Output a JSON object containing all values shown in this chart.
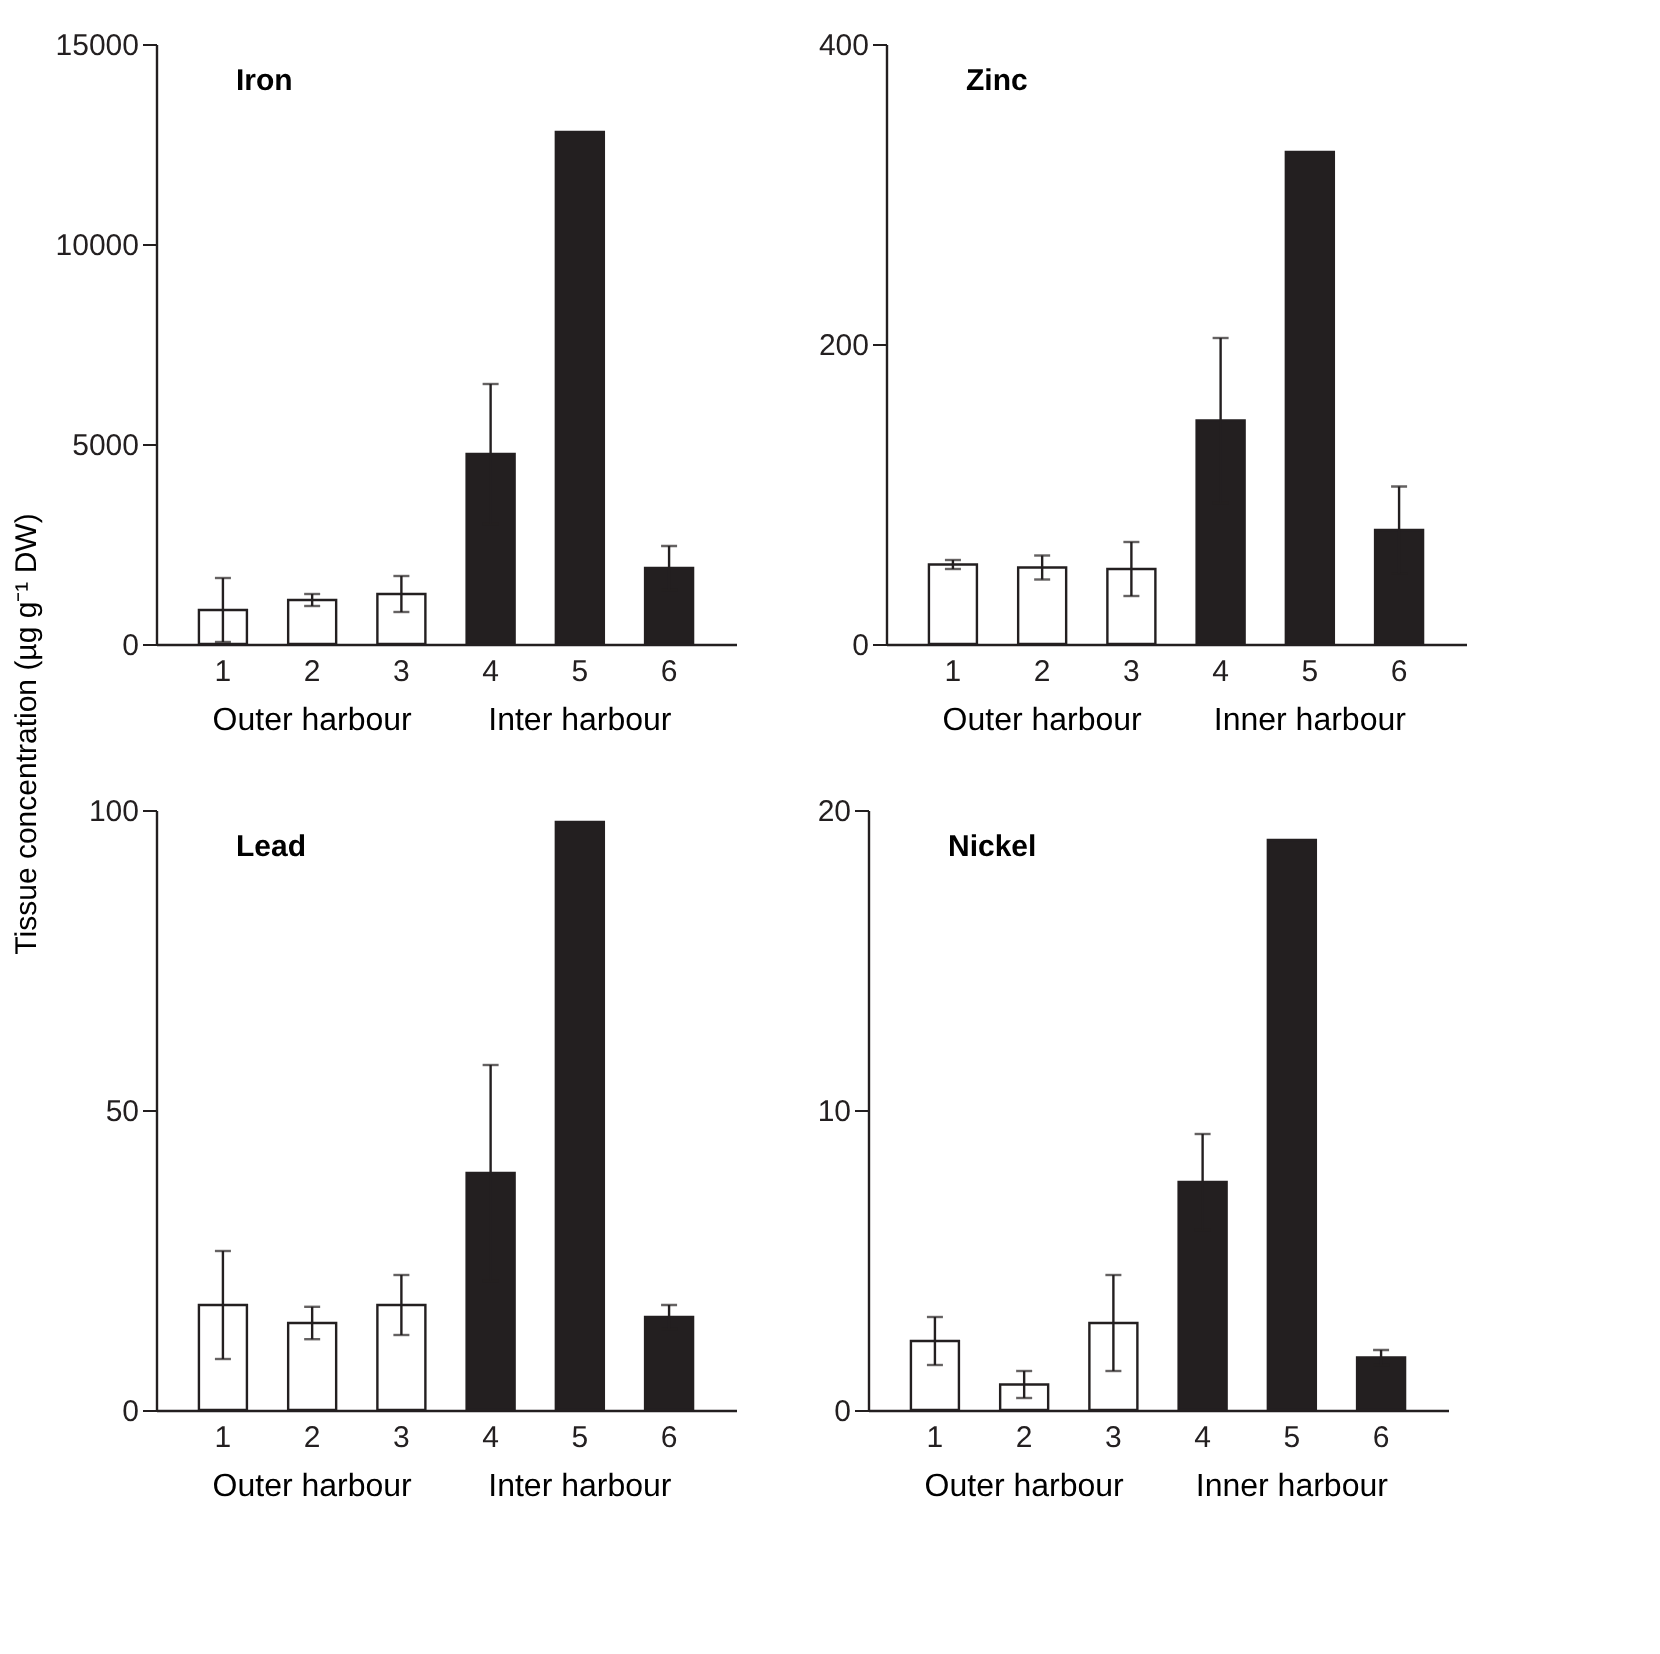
{
  "chart_data": [
    {
      "type": "bar",
      "title": "Iron",
      "ylabel": "Tissue concentration (µg g⁻¹ DW)",
      "categories": [
        "1",
        "2",
        "3",
        "4",
        "5",
        "6"
      ],
      "values": [
        850,
        1100,
        1250,
        4750,
        12800,
        1900
      ],
      "errors": [
        800,
        150,
        450,
        1750,
        null,
        550
      ],
      "colors": [
        "#ffffff",
        "#ffffff",
        "#ffffff",
        "#231f20",
        "#231f20",
        "#231f20"
      ],
      "ylim": [
        0,
        15000
      ],
      "yticks": [
        0,
        5000,
        10000,
        15000
      ],
      "annotations": [
        "Outer harbour",
        "Inter harbour"
      ],
      "grid": false
    },
    {
      "type": "bar",
      "title": "Zinc",
      "categories": [
        "1",
        "2",
        "3",
        "4",
        "5",
        "6"
      ],
      "values": [
        53,
        51,
        50,
        149,
        328,
        76
      ],
      "errors": [
        3,
        8,
        18,
        55,
        null,
        29
      ],
      "colors": [
        "#ffffff",
        "#ffffff",
        "#ffffff",
        "#231f20",
        "#231f20",
        "#231f20"
      ],
      "ylim": [
        0,
        400
      ],
      "yticks": [
        0,
        200,
        400
      ],
      "annotations": [
        "Outer harbour",
        "Inner harbour"
      ],
      "grid": false
    },
    {
      "type": "bar",
      "title": "Lead",
      "categories": [
        "1",
        "2",
        "3",
        "4",
        "5",
        "6"
      ],
      "values": [
        17.5,
        14.5,
        17.5,
        39.5,
        98,
        15.5
      ],
      "errors": [
        9,
        2.7,
        5,
        18,
        null,
        2
      ],
      "colors": [
        "#ffffff",
        "#ffffff",
        "#ffffff",
        "#231f20",
        "#231f20",
        "#231f20"
      ],
      "ylim": [
        0,
        100
      ],
      "yticks": [
        0,
        50,
        100
      ],
      "annotations": [
        "Outer harbour",
        "Inter harbour"
      ],
      "grid": false
    },
    {
      "type": "bar",
      "title": "Nickel",
      "categories": [
        "1",
        "2",
        "3",
        "4",
        "5",
        "6"
      ],
      "values": [
        2.3,
        0.85,
        2.9,
        7.6,
        19,
        1.75
      ],
      "errors": [
        0.8,
        0.45,
        1.6,
        1.6,
        null,
        0.25
      ],
      "colors": [
        "#ffffff",
        "#ffffff",
        "#ffffff",
        "#231f20",
        "#231f20",
        "#231f20"
      ],
      "ylim": [
        0,
        20
      ],
      "yticks": [
        0,
        10,
        20
      ],
      "annotations": [
        "Outer harbour",
        "Inner harbour"
      ],
      "grid": false
    }
  ]
}
